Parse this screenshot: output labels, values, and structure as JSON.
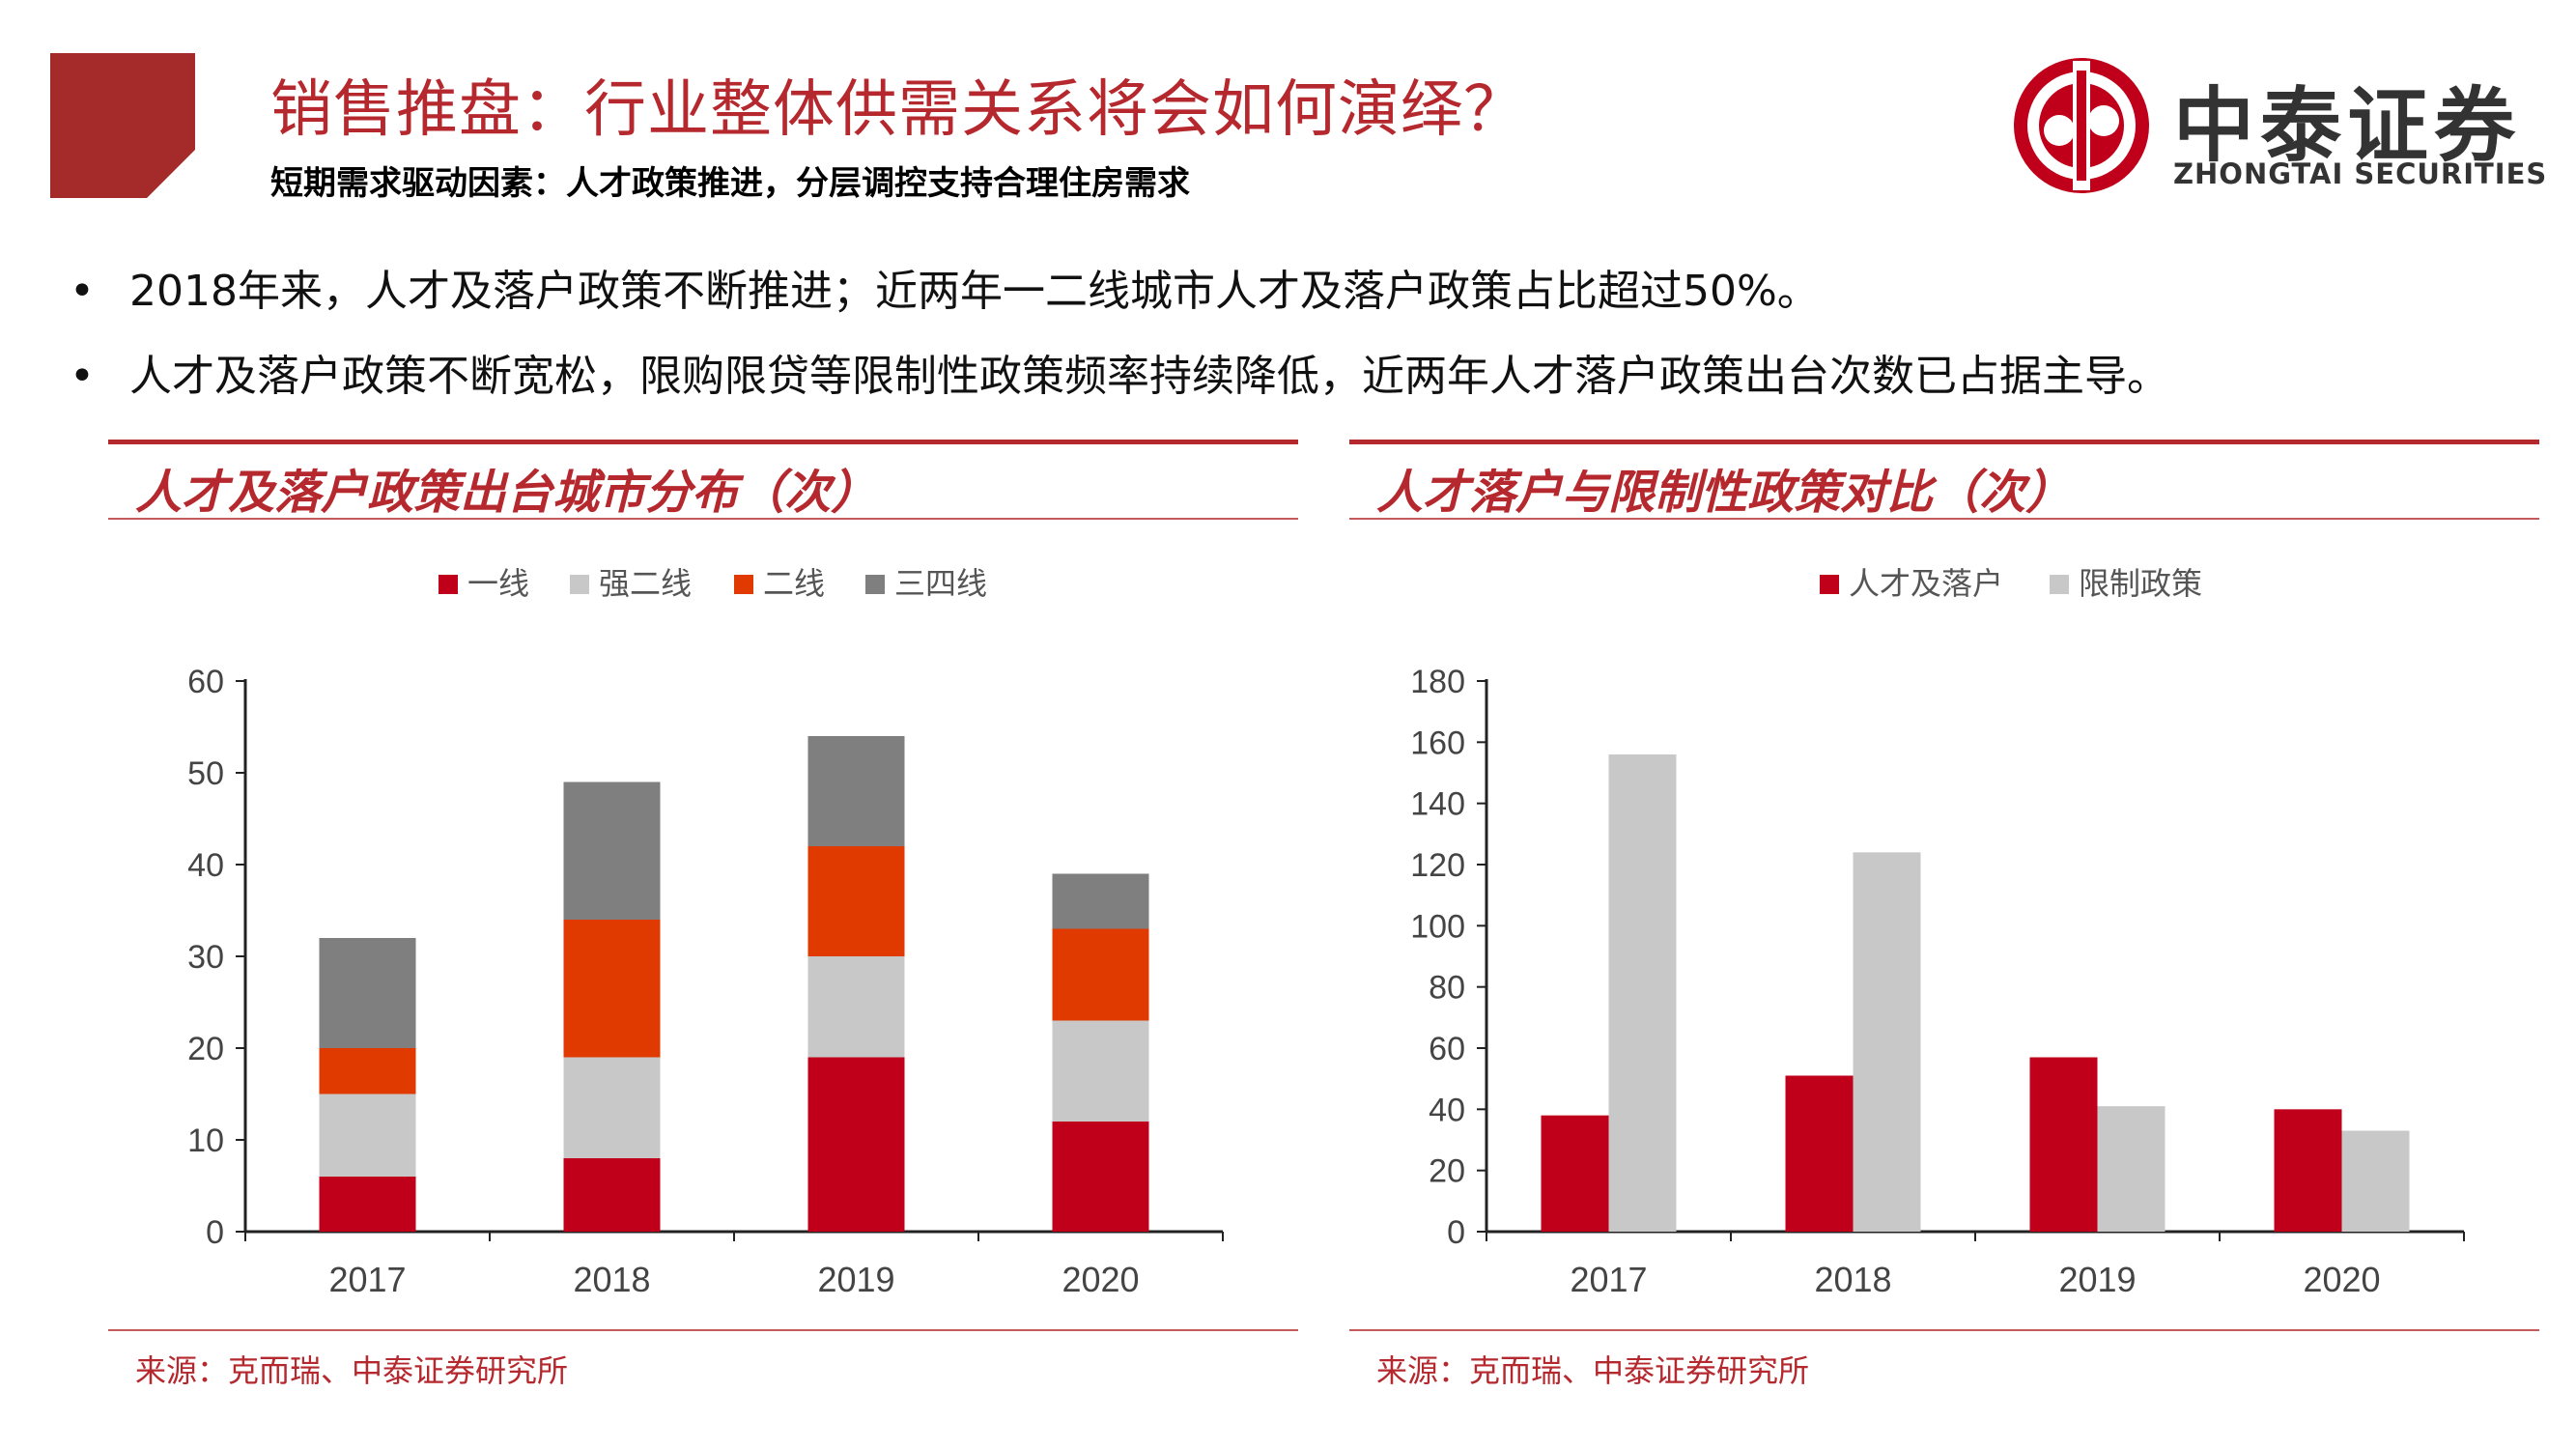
{
  "header": {
    "title": "销售推盘：行业整体供需关系将会如何演绎？",
    "subtitle": "短期需求驱动因素：人才政策推进，分层调控支持合理住房需求",
    "accent_color": "#b5282e"
  },
  "logo": {
    "name_cn": "中泰证券",
    "name_en": "ZHONGTAI SECURITIES",
    "icon": "zhongtai-logo-icon"
  },
  "bullets": [
    "2018年来，人才及落户政策不断推进；近两年一二线城市人才及落户政策占比超过50%。",
    "人才及落户政策不断宽松，限购限贷等限制性政策频率持续降低，近两年人才落户政策出台次数已占据主导。"
  ],
  "chart_data": [
    {
      "type": "bar",
      "stacked": true,
      "title": "人才及落户政策出台城市分布（次）",
      "categories": [
        "2017",
        "2018",
        "2019",
        "2020"
      ],
      "series": [
        {
          "name": "一线",
          "color": "#c0001a",
          "values": [
            6,
            8,
            19,
            12
          ]
        },
        {
          "name": "强二线",
          "color": "#c8c8c8",
          "values": [
            9,
            11,
            11,
            11
          ]
        },
        {
          "name": "二线",
          "color": "#e03a00",
          "values": [
            5,
            15,
            12,
            10
          ]
        },
        {
          "name": "三四线",
          "color": "#7f7f7f",
          "values": [
            12,
            15,
            12,
            6
          ]
        }
      ],
      "ylim": [
        0,
        60
      ],
      "yticks": [
        0,
        10,
        20,
        30,
        40,
        50,
        60
      ],
      "legend": "top",
      "grid": false,
      "source": "来源：克而瑞、中泰证券研究所"
    },
    {
      "type": "bar",
      "stacked": false,
      "title": "人才落户与限制性政策对比（次）",
      "categories": [
        "2017",
        "2018",
        "2019",
        "2020"
      ],
      "series": [
        {
          "name": "人才及落户",
          "color": "#c0001a",
          "values": [
            38,
            51,
            57,
            40
          ]
        },
        {
          "name": "限制政策",
          "color": "#c8c8c8",
          "values": [
            156,
            124,
            41,
            33
          ]
        }
      ],
      "ylim": [
        0,
        180
      ],
      "yticks": [
        0,
        20,
        40,
        60,
        80,
        100,
        120,
        140,
        160,
        180
      ],
      "legend": "top",
      "grid": false,
      "source": "来源：克而瑞、中泰证券研究所"
    }
  ]
}
